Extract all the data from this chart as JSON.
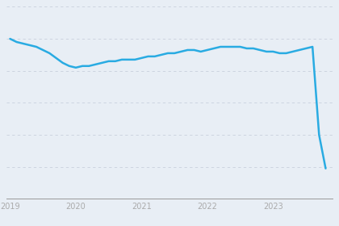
{
  "background_color": "#e8eef5",
  "line_color": "#29abe2",
  "line_width": 1.8,
  "x_labels": [
    "2019",
    "2020",
    "2021",
    "2022",
    "2023"
  ],
  "x_tick_positions": [
    0,
    10,
    20,
    30,
    40
  ],
  "x_data": [
    0,
    1,
    2,
    3,
    4,
    5,
    6,
    7,
    8,
    9,
    10,
    11,
    12,
    13,
    14,
    15,
    16,
    17,
    18,
    19,
    20,
    21,
    22,
    23,
    24,
    25,
    26,
    27,
    28,
    29,
    30,
    31,
    32,
    33,
    34,
    35,
    36,
    37,
    38,
    39,
    40,
    41,
    42,
    43,
    44,
    45,
    46,
    47,
    48
  ],
  "y_data": [
    100,
    98,
    97,
    96,
    95,
    93,
    91,
    88,
    85,
    83,
    82,
    83,
    83,
    84,
    85,
    86,
    86,
    87,
    87,
    87,
    88,
    89,
    89,
    90,
    91,
    91,
    92,
    93,
    93,
    92,
    93,
    94,
    95,
    95,
    95,
    95,
    94,
    94,
    93,
    92,
    92,
    91,
    91,
    92,
    93,
    94,
    95,
    40,
    19
  ],
  "ylim": [
    0,
    120
  ],
  "grid_levels": [
    20,
    40,
    60,
    80,
    100,
    120
  ],
  "grid_color": "#c8d0dc",
  "grid_linestyle": "--",
  "grid_linewidth": 0.6,
  "bottom_bar_color": "#29abe2",
  "xlim": [
    -0.5,
    49
  ]
}
